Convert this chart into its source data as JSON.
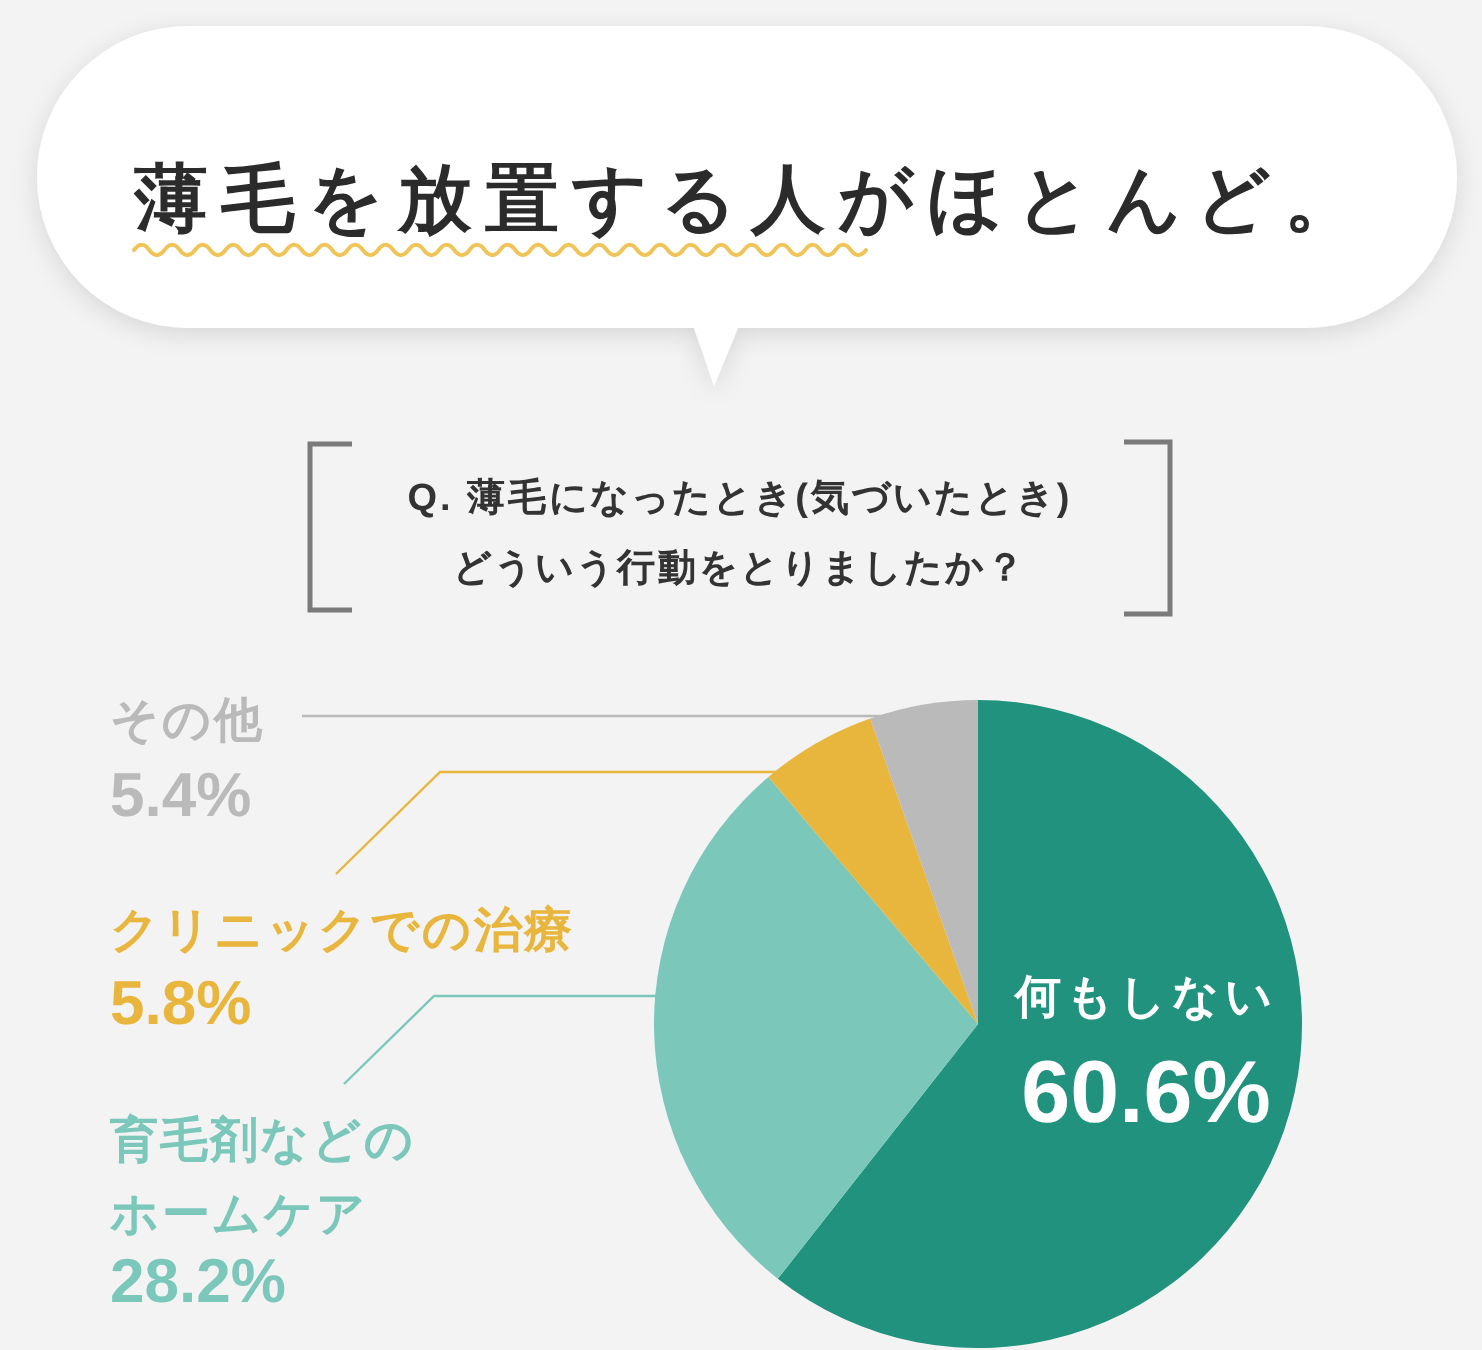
{
  "chart_data": {
    "type": "pie",
    "title": "薄毛を放置する人がほとんど。",
    "subtitle": "Q. 薄毛になったとき(気づいたとき)どういう行動をとりましたか？",
    "categories": [
      "何もしない",
      "育毛剤などのホームケア",
      "クリニックでの治療",
      "その他"
    ],
    "values": [
      60.6,
      28.2,
      5.8,
      5.4
    ],
    "colors": [
      "#20927e",
      "#7bc8bb",
      "#e9b63d",
      "#bababa"
    ],
    "value_labels": [
      "60.6%",
      "28.2%",
      "5.8%",
      "5.4%"
    ]
  }
}
